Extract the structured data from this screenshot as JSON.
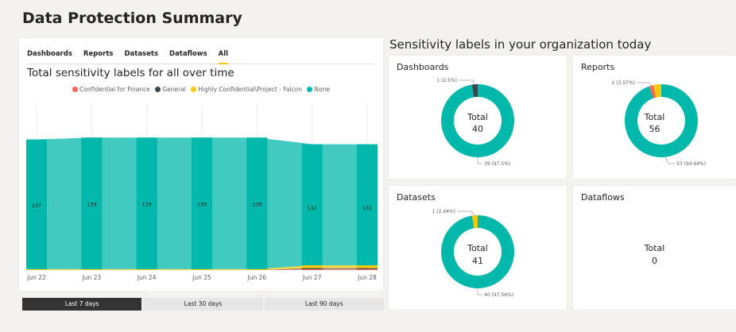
{
  "page": {
    "title": "Data Protection Summary"
  },
  "left": {
    "tabs": [
      {
        "label": "Dashboards",
        "active": false
      },
      {
        "label": "Reports",
        "active": false
      },
      {
        "label": "Datasets",
        "active": false
      },
      {
        "label": "Dataflows",
        "active": false
      },
      {
        "label": "All",
        "active": true
      }
    ],
    "range_buttons": [
      {
        "label": "Last 7 days",
        "active": true
      },
      {
        "label": "Last 30 days",
        "active": false
      },
      {
        "label": "Last 90 days",
        "active": false
      }
    ]
  },
  "right": {
    "title": "Sensitivity labels in your organization today",
    "total_label": "Total",
    "donuts": [
      {
        "name": "Dashboards",
        "total": "40",
        "segments": [
          {
            "label": "None",
            "value": 39,
            "color": "#01b8aa"
          },
          {
            "label": "General",
            "value": 1,
            "color": "#374649"
          }
        ],
        "callouts": [
          "1 (2.5%)",
          "39 (97.5%)"
        ]
      },
      {
        "name": "Reports",
        "total": "56",
        "segments": [
          {
            "label": "None",
            "value": 53,
            "color": "#01b8aa"
          },
          {
            "label": "Confidential for Finance",
            "value": 1,
            "color": "#fd625e"
          },
          {
            "label": "Highly Confidential\\Project - Falcon",
            "value": 2,
            "color": "#f2c80f"
          }
        ],
        "callouts": [
          "2 (3.57%)",
          "53 (94.64%)"
        ]
      },
      {
        "name": "Datasets",
        "total": "41",
        "segments": [
          {
            "label": "None",
            "value": 40,
            "color": "#01b8aa"
          },
          {
            "label": "Highly Confidential\\Project - Falcon",
            "value": 1,
            "color": "#f2c80f"
          }
        ],
        "callouts": [
          "1 (2.44%)",
          "40 (97.56%)"
        ]
      },
      {
        "name": "Dataflows",
        "total": "0",
        "segments": [],
        "callouts": []
      }
    ]
  },
  "chart_data": {
    "type": "area",
    "title": "Total sensitivity labels for all over time",
    "categories": [
      "Jun 22",
      "Jun 23",
      "Jun 24",
      "Jun 25",
      "Jun 26",
      "Jun 27",
      "Jun 28"
    ],
    "series": [
      {
        "name": "Confidential for Finance",
        "color": "#fd625e",
        "values": [
          0,
          0,
          0,
          0,
          0,
          1,
          1
        ]
      },
      {
        "name": "General",
        "color": "#374649",
        "values": [
          0,
          0,
          0,
          0,
          0,
          1,
          1
        ]
      },
      {
        "name": "Highly Confidential\\Project - Falcon",
        "color": "#f2c80f",
        "values": [
          1,
          1,
          1,
          1,
          1,
          3,
          3
        ]
      },
      {
        "name": "None",
        "color": "#01b8aa",
        "values": [
          136,
          138,
          138,
          138,
          138,
          127,
          127
        ]
      }
    ],
    "totals": [
      "137",
      "139",
      "139",
      "139",
      "139",
      "132",
      "132"
    ],
    "ylim": [
      0,
      175
    ],
    "legend": "top-center",
    "grid": false
  }
}
